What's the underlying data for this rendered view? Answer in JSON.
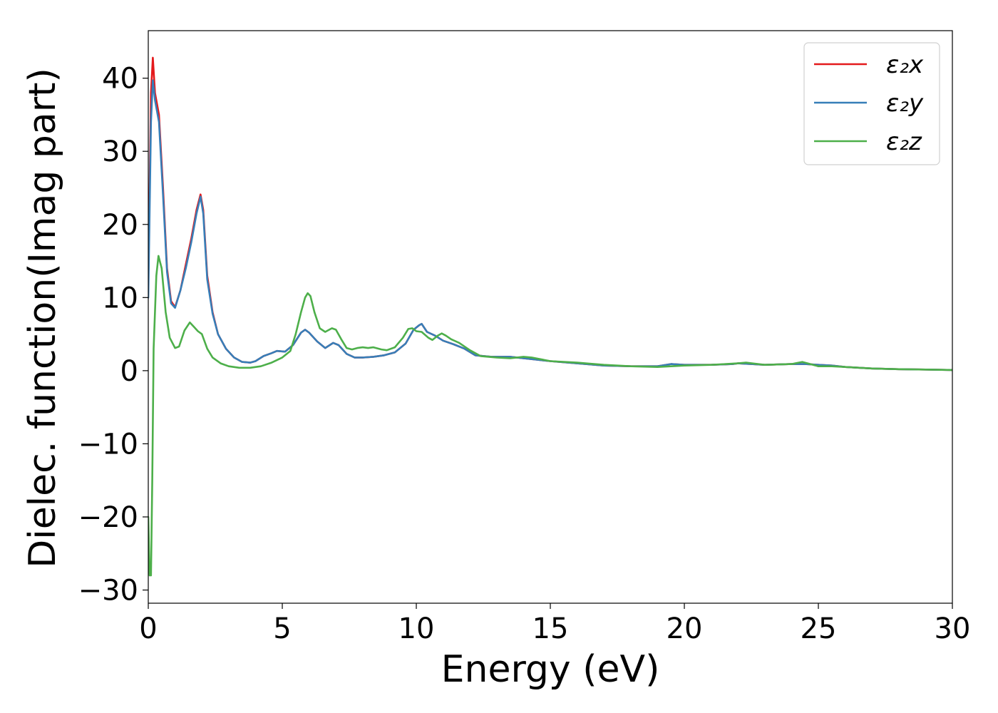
{
  "chart_data": {
    "type": "line",
    "title": "",
    "xlabel": "Energy (eV)",
    "ylabel": "Dielec. function(Imag part)",
    "xlim": [
      0,
      30
    ],
    "ylim": [
      -31.8,
      46.5
    ],
    "xticks": [
      0,
      5,
      10,
      15,
      20,
      25,
      30
    ],
    "xtick_labels": [
      "0",
      "5",
      "10",
      "15",
      "20",
      "25",
      "30"
    ],
    "yticks": [
      -30,
      -20,
      -10,
      0,
      10,
      20,
      30,
      40
    ],
    "ytick_labels": [
      "−30",
      "−20",
      "−10",
      "0",
      "10",
      "20",
      "30",
      "40"
    ],
    "grid": false,
    "legend_position": "top-right",
    "series": [
      {
        "name": "ε₂x",
        "color": "#e41a1c",
        "points": [
          [
            0,
            12
          ],
          [
            0.05,
            25
          ],
          [
            0.1,
            38
          ],
          [
            0.17,
            42.8
          ],
          [
            0.25,
            38
          ],
          [
            0.4,
            35
          ],
          [
            0.55,
            25
          ],
          [
            0.7,
            14
          ],
          [
            0.85,
            9.5
          ],
          [
            1.0,
            8.7
          ],
          [
            1.2,
            11
          ],
          [
            1.4,
            14.5
          ],
          [
            1.6,
            18
          ],
          [
            1.8,
            22
          ],
          [
            1.95,
            24.1
          ],
          [
            2.05,
            22
          ],
          [
            2.2,
            13
          ],
          [
            2.4,
            8
          ],
          [
            2.6,
            5
          ],
          [
            2.9,
            3
          ],
          [
            3.2,
            1.8
          ],
          [
            3.5,
            1.2
          ],
          [
            3.8,
            1.1
          ],
          [
            4.0,
            1.3
          ],
          [
            4.3,
            2
          ],
          [
            4.6,
            2.4
          ],
          [
            4.8,
            2.7
          ],
          [
            5.1,
            2.6
          ],
          [
            5.4,
            3.5
          ],
          [
            5.7,
            5.2
          ],
          [
            5.85,
            5.6
          ],
          [
            6.0,
            5.2
          ],
          [
            6.3,
            4
          ],
          [
            6.6,
            3.1
          ],
          [
            6.9,
            3.8
          ],
          [
            7.1,
            3.5
          ],
          [
            7.4,
            2.3
          ],
          [
            7.7,
            1.8
          ],
          [
            8.0,
            1.8
          ],
          [
            8.4,
            1.9
          ],
          [
            8.8,
            2.1
          ],
          [
            9.2,
            2.5
          ],
          [
            9.6,
            3.7
          ],
          [
            9.9,
            5.6
          ],
          [
            10.1,
            6.2
          ],
          [
            10.2,
            6.4
          ],
          [
            10.4,
            5.3
          ],
          [
            10.7,
            4.8
          ],
          [
            11.0,
            4.1
          ],
          [
            11.4,
            3.6
          ],
          [
            11.8,
            3
          ],
          [
            12.2,
            2.1
          ],
          [
            12.8,
            1.9
          ],
          [
            13.5,
            1.9
          ],
          [
            14.0,
            1.7
          ],
          [
            14.5,
            1.5
          ],
          [
            15.0,
            1.3
          ],
          [
            16.0,
            1.0
          ],
          [
            17.0,
            0.7
          ],
          [
            18.0,
            0.6
          ],
          [
            19.0,
            0.6
          ],
          [
            19.5,
            0.9
          ],
          [
            20.0,
            0.8
          ],
          [
            21.0,
            0.8
          ],
          [
            21.8,
            0.9
          ],
          [
            22.0,
            1.0
          ],
          [
            22.5,
            0.9
          ],
          [
            23.0,
            0.8
          ],
          [
            24.0,
            0.9
          ],
          [
            24.5,
            0.9
          ],
          [
            25.0,
            0.8
          ],
          [
            25.5,
            0.7
          ],
          [
            26.0,
            0.5
          ],
          [
            27.0,
            0.3
          ],
          [
            28.0,
            0.2
          ],
          [
            29.0,
            0.15
          ],
          [
            30.0,
            0.1
          ]
        ]
      },
      {
        "name": "ε₂y",
        "color": "#377eb8",
        "points": [
          [
            0,
            10
          ],
          [
            0.05,
            22
          ],
          [
            0.1,
            34
          ],
          [
            0.17,
            39.7
          ],
          [
            0.25,
            37
          ],
          [
            0.4,
            34
          ],
          [
            0.55,
            24
          ],
          [
            0.7,
            13.5
          ],
          [
            0.85,
            9.2
          ],
          [
            1.0,
            8.6
          ],
          [
            1.2,
            11
          ],
          [
            1.4,
            14
          ],
          [
            1.6,
            17.5
          ],
          [
            1.8,
            21.5
          ],
          [
            1.95,
            23.8
          ],
          [
            2.05,
            21.5
          ],
          [
            2.2,
            12.5
          ],
          [
            2.4,
            7.8
          ],
          [
            2.6,
            5
          ],
          [
            2.9,
            3
          ],
          [
            3.2,
            1.8
          ],
          [
            3.5,
            1.2
          ],
          [
            3.8,
            1.1
          ],
          [
            4.0,
            1.3
          ],
          [
            4.3,
            2
          ],
          [
            4.6,
            2.4
          ],
          [
            4.8,
            2.7
          ],
          [
            5.1,
            2.6
          ],
          [
            5.4,
            3.5
          ],
          [
            5.7,
            5.2
          ],
          [
            5.85,
            5.6
          ],
          [
            6.0,
            5.2
          ],
          [
            6.3,
            4
          ],
          [
            6.6,
            3.1
          ],
          [
            6.9,
            3.8
          ],
          [
            7.1,
            3.5
          ],
          [
            7.4,
            2.3
          ],
          [
            7.7,
            1.8
          ],
          [
            8.0,
            1.8
          ],
          [
            8.4,
            1.9
          ],
          [
            8.8,
            2.1
          ],
          [
            9.2,
            2.5
          ],
          [
            9.6,
            3.7
          ],
          [
            9.9,
            5.6
          ],
          [
            10.1,
            6.2
          ],
          [
            10.2,
            6.4
          ],
          [
            10.4,
            5.3
          ],
          [
            10.7,
            4.8
          ],
          [
            11.0,
            4.1
          ],
          [
            11.4,
            3.6
          ],
          [
            11.8,
            3
          ],
          [
            12.2,
            2.1
          ],
          [
            12.8,
            1.9
          ],
          [
            13.5,
            1.9
          ],
          [
            14.0,
            1.7
          ],
          [
            14.5,
            1.5
          ],
          [
            15.0,
            1.3
          ],
          [
            16.0,
            1.0
          ],
          [
            17.0,
            0.7
          ],
          [
            18.0,
            0.6
          ],
          [
            19.0,
            0.6
          ],
          [
            19.5,
            0.9
          ],
          [
            20.0,
            0.8
          ],
          [
            21.0,
            0.8
          ],
          [
            21.8,
            0.9
          ],
          [
            22.0,
            1.0
          ],
          [
            22.5,
            0.9
          ],
          [
            23.0,
            0.8
          ],
          [
            24.0,
            0.9
          ],
          [
            24.5,
            0.9
          ],
          [
            25.0,
            0.8
          ],
          [
            25.5,
            0.7
          ],
          [
            26.0,
            0.5
          ],
          [
            27.0,
            0.3
          ],
          [
            28.0,
            0.2
          ],
          [
            29.0,
            0.15
          ],
          [
            30.0,
            0.1
          ]
        ]
      },
      {
        "name": "ε₂z",
        "color": "#4daf4a",
        "points": [
          [
            0,
            -20
          ],
          [
            0.05,
            -28
          ],
          [
            0.1,
            -28
          ],
          [
            0.15,
            -15
          ],
          [
            0.2,
            3
          ],
          [
            0.3,
            13
          ],
          [
            0.38,
            15.7
          ],
          [
            0.5,
            14
          ],
          [
            0.65,
            8
          ],
          [
            0.8,
            4.5
          ],
          [
            1.0,
            3.1
          ],
          [
            1.15,
            3.3
          ],
          [
            1.35,
            5.5
          ],
          [
            1.55,
            6.6
          ],
          [
            1.7,
            6
          ],
          [
            1.85,
            5.4
          ],
          [
            2.0,
            5
          ],
          [
            2.2,
            3
          ],
          [
            2.4,
            1.8
          ],
          [
            2.7,
            1
          ],
          [
            3.0,
            0.6
          ],
          [
            3.4,
            0.4
          ],
          [
            3.8,
            0.4
          ],
          [
            4.2,
            0.6
          ],
          [
            4.6,
            1.1
          ],
          [
            5.0,
            1.8
          ],
          [
            5.3,
            2.7
          ],
          [
            5.5,
            5
          ],
          [
            5.7,
            8
          ],
          [
            5.85,
            10
          ],
          [
            5.95,
            10.6
          ],
          [
            6.05,
            10.2
          ],
          [
            6.2,
            8
          ],
          [
            6.4,
            5.8
          ],
          [
            6.6,
            5.3
          ],
          [
            6.85,
            5.8
          ],
          [
            7.0,
            5.6
          ],
          [
            7.2,
            4.3
          ],
          [
            7.4,
            3.1
          ],
          [
            7.6,
            2.9
          ],
          [
            7.8,
            3.1
          ],
          [
            8.0,
            3.2
          ],
          [
            8.2,
            3.1
          ],
          [
            8.4,
            3.2
          ],
          [
            8.7,
            2.9
          ],
          [
            8.9,
            2.8
          ],
          [
            9.2,
            3.2
          ],
          [
            9.5,
            4.5
          ],
          [
            9.7,
            5.7
          ],
          [
            9.85,
            5.8
          ],
          [
            10.0,
            5.4
          ],
          [
            10.2,
            5.3
          ],
          [
            10.45,
            4.5
          ],
          [
            10.6,
            4.2
          ],
          [
            10.8,
            4.8
          ],
          [
            10.95,
            5.1
          ],
          [
            11.1,
            4.8
          ],
          [
            11.3,
            4.3
          ],
          [
            11.6,
            3.8
          ],
          [
            12.0,
            2.8
          ],
          [
            12.4,
            2.0
          ],
          [
            13.0,
            1.8
          ],
          [
            13.5,
            1.7
          ],
          [
            14.0,
            1.9
          ],
          [
            14.3,
            1.8
          ],
          [
            15.0,
            1.3
          ],
          [
            16.0,
            1.1
          ],
          [
            17.0,
            0.8
          ],
          [
            18.0,
            0.6
          ],
          [
            19.0,
            0.5
          ],
          [
            20.0,
            0.7
          ],
          [
            21.0,
            0.8
          ],
          [
            22.0,
            1.0
          ],
          [
            22.3,
            1.1
          ],
          [
            23.0,
            0.8
          ],
          [
            24.0,
            0.9
          ],
          [
            24.4,
            1.2
          ],
          [
            24.6,
            1.0
          ],
          [
            25.0,
            0.6
          ],
          [
            25.5,
            0.6
          ],
          [
            26.0,
            0.5
          ],
          [
            27.0,
            0.3
          ],
          [
            28.0,
            0.2
          ],
          [
            29.0,
            0.15
          ],
          [
            30.0,
            0.1
          ]
        ]
      }
    ]
  }
}
